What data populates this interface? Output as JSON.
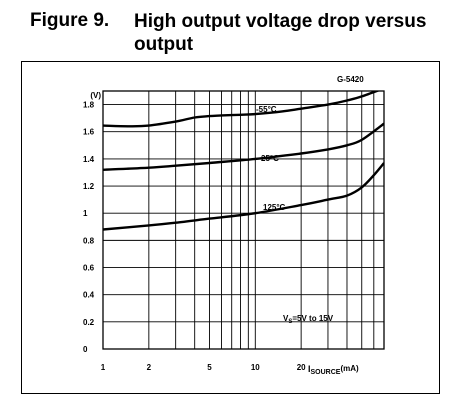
{
  "figure": {
    "number": "Figure 9.",
    "caption": "High output voltage drop versus output"
  },
  "chart_data": {
    "type": "line",
    "code": "G-5420",
    "y_unit_label": "(V)",
    "x_scale": "log",
    "xlim": [
      1,
      70
    ],
    "ylim": [
      0,
      1.9
    ],
    "y_ticks": [
      0,
      0.2,
      0.4,
      0.6,
      0.8,
      1,
      1.2,
      1.4,
      1.6,
      1.8
    ],
    "y_tick_labels": [
      "0",
      "0.2",
      "0.4",
      "0.6",
      "0.8",
      "1",
      "1.2",
      "1.4",
      "1.6",
      "1.8"
    ],
    "x_ticks": [
      1,
      2,
      5,
      10,
      20
    ],
    "x_tick_labels": [
      "1",
      "2",
      "5",
      "10",
      "20"
    ],
    "x_minor_gridlines": [
      3,
      4,
      6,
      7,
      8,
      9,
      30,
      40,
      50,
      60,
      70
    ],
    "x_label_main": "I",
    "x_label_sub": "SOURCE",
    "x_label_unit": "(mA)",
    "condition_main": "V",
    "condition_sub": "S",
    "condition_rest": "=5V to 15V",
    "grid": true,
    "series": [
      {
        "name": "-55°C",
        "x": [
          1,
          1.5,
          2,
          3,
          4,
          5,
          6,
          8,
          10,
          15,
          20,
          30,
          40,
          50,
          70
        ],
        "y": [
          1.645,
          1.64,
          1.645,
          1.675,
          1.705,
          1.715,
          1.72,
          1.725,
          1.73,
          1.75,
          1.77,
          1.8,
          1.83,
          1.86,
          1.92
        ]
      },
      {
        "name": "25°C",
        "x": [
          1,
          2,
          3,
          5,
          10,
          20,
          30,
          40,
          50,
          70
        ],
        "y": [
          1.32,
          1.335,
          1.35,
          1.37,
          1.4,
          1.44,
          1.47,
          1.5,
          1.54,
          1.66
        ]
      },
      {
        "name": "125°C",
        "x": [
          1,
          2,
          3,
          5,
          10,
          20,
          30,
          40,
          50,
          60,
          70
        ],
        "y": [
          0.88,
          0.91,
          0.93,
          0.96,
          1.0,
          1.06,
          1.1,
          1.13,
          1.19,
          1.28,
          1.37
        ]
      }
    ]
  }
}
